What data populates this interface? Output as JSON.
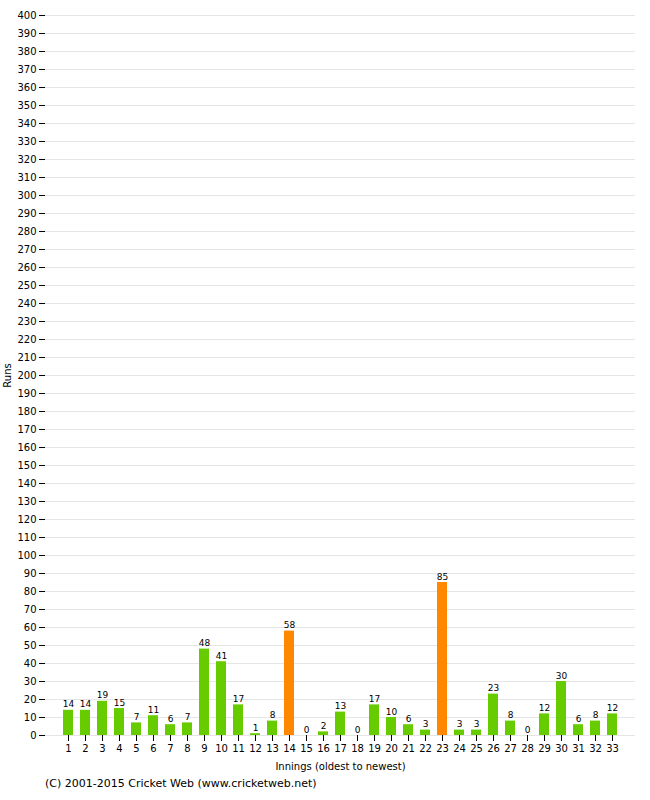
{
  "chart_data": {
    "type": "bar",
    "xlabel": "Innings (oldest to newest)",
    "ylabel": "Runs",
    "caption": "(C) 2001-2015 Cricket Web (www.cricketweb.net)",
    "categories": [
      "1",
      "2",
      "3",
      "4",
      "5",
      "6",
      "7",
      "8",
      "9",
      "10",
      "11",
      "12",
      "13",
      "14",
      "15",
      "16",
      "17",
      "18",
      "19",
      "20",
      "21",
      "22",
      "23",
      "24",
      "25",
      "26",
      "27",
      "28",
      "29",
      "30",
      "31",
      "32",
      "33"
    ],
    "values": [
      14,
      14,
      19,
      15,
      7,
      11,
      6,
      7,
      48,
      41,
      17,
      1,
      8,
      58,
      0,
      2,
      13,
      0,
      17,
      10,
      6,
      3,
      85,
      3,
      3,
      23,
      8,
      0,
      12,
      30,
      6,
      8,
      12
    ],
    "colors": [
      "#66cc00",
      "#66cc00",
      "#66cc00",
      "#66cc00",
      "#66cc00",
      "#66cc00",
      "#66cc00",
      "#66cc00",
      "#66cc00",
      "#66cc00",
      "#66cc00",
      "#66cc00",
      "#66cc00",
      "#ff8800",
      "#66cc00",
      "#66cc00",
      "#66cc00",
      "#66cc00",
      "#66cc00",
      "#66cc00",
      "#66cc00",
      "#66cc00",
      "#ff8800",
      "#66cc00",
      "#66cc00",
      "#66cc00",
      "#66cc00",
      "#66cc00",
      "#66cc00",
      "#66cc00",
      "#66cc00",
      "#66cc00",
      "#66cc00"
    ],
    "ylim": [
      0,
      400
    ],
    "yticks": [
      0,
      10,
      20,
      30,
      40,
      50,
      60,
      70,
      80,
      90,
      100,
      110,
      120,
      130,
      140,
      150,
      160,
      170,
      180,
      190,
      200,
      210,
      220,
      230,
      240,
      250,
      260,
      270,
      280,
      290,
      300,
      310,
      320,
      330,
      340,
      350,
      360,
      370,
      380,
      390,
      400
    ],
    "grid": true,
    "data_labels": true
  }
}
